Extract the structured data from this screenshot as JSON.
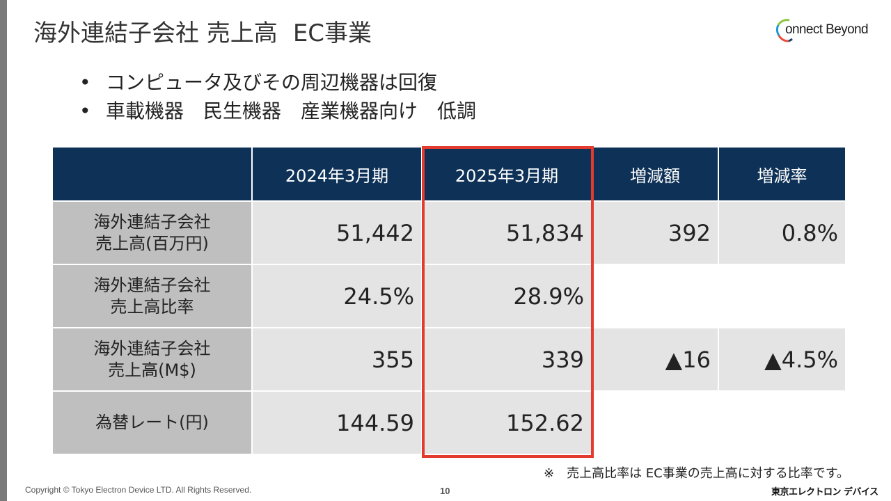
{
  "title": {
    "main": "海外連結子会社 売上高",
    "segment": "EC事業"
  },
  "logo": {
    "text": "onnect Beyond",
    "colors": [
      "#1b9bd7",
      "#8cc63f",
      "#e94e3c",
      "#1a3c6e"
    ]
  },
  "bullets": {
    "marker": "•",
    "items": [
      "コンピュータ及びその周辺機器は回復",
      "車載機器　民生機器　産業機器向け　低調"
    ]
  },
  "table": {
    "headers": [
      "",
      "2024年3月期",
      "2025年3月期",
      "増減額",
      "増減率"
    ],
    "rows": [
      {
        "label_line1": "海外連結子会社",
        "label_line2": "売上高(百万円)",
        "fy2024": "51,442",
        "fy2025": "51,834",
        "change": "392",
        "rate": "0.8%"
      },
      {
        "label_line1": "海外連結子会社",
        "label_line2": "売上高比率",
        "fy2024": "24.5%",
        "fy2025": "28.9%",
        "change": "",
        "rate": ""
      },
      {
        "label_line1": "海外連結子会社",
        "label_line2": "売上高(M$)",
        "fy2024": "355",
        "fy2025": "339",
        "change": "▲16",
        "rate": "▲4.5%"
      },
      {
        "label_line1": "為替レート(円)",
        "label_line2": "",
        "fy2024": "144.59",
        "fy2025": "152.62",
        "change": "",
        "rate": ""
      }
    ]
  },
  "colors": {
    "header_bg": "#0e3157",
    "label_bg": "#bfbfbf",
    "cell_bg": "#e4e4e4",
    "highlight": "#e33b2e"
  },
  "footnote": "※　売上高比率は EC事業の売上高に対する比率です。",
  "footer": {
    "copyright": "Copyright © Tokyo Electron Device LTD. All Rights Reserved.",
    "page": "10",
    "company": "東京エレクトロン デバイス"
  }
}
